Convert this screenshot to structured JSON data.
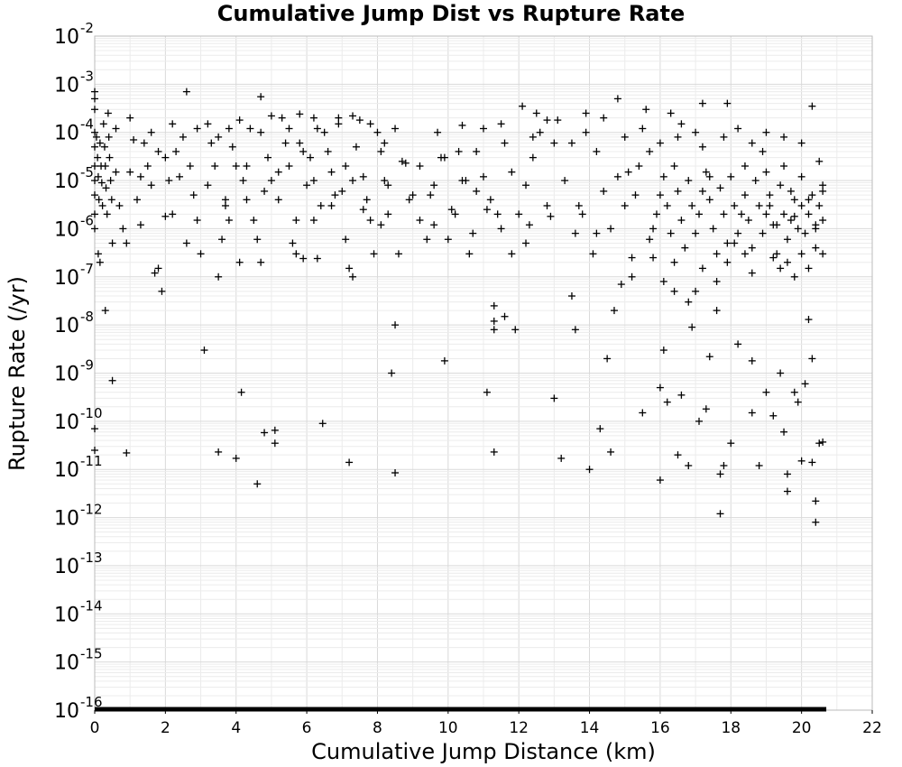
{
  "chart_data": {
    "type": "scatter",
    "title": "Cumulative Jump Dist vs Rupture Rate",
    "xlabel": "Cumulative Jump Distance (km)",
    "ylabel": "Rupture Rate (/yr)",
    "xlim": [
      0,
      22
    ],
    "ylim": [
      1e-16,
      0.01
    ],
    "yscale": "log",
    "grid": true,
    "marker": "+",
    "marker_color": "#000000",
    "x_ticks": [
      "0",
      "2",
      "4",
      "6",
      "8",
      "10",
      "12",
      "14",
      "16",
      "18",
      "20",
      "22"
    ],
    "y_ticks": [
      {
        "base": "10",
        "exp": "-2"
      },
      {
        "base": "10",
        "exp": "-3"
      },
      {
        "base": "10",
        "exp": "-4"
      },
      {
        "base": "10",
        "exp": "-5"
      },
      {
        "base": "10",
        "exp": "-6"
      },
      {
        "base": "10",
        "exp": "-7"
      },
      {
        "base": "10",
        "exp": "-8"
      },
      {
        "base": "10",
        "exp": "-9"
      },
      {
        "base": "10",
        "exp": "-10"
      },
      {
        "base": "10",
        "exp": "-11"
      },
      {
        "base": "10",
        "exp": "-12"
      },
      {
        "base": "10",
        "exp": "-13"
      },
      {
        "base": "10",
        "exp": "-14"
      },
      {
        "base": "10",
        "exp": "-15"
      },
      {
        "base": "10",
        "exp": "-16"
      }
    ],
    "points": [
      [
        0.0,
        0.0007
      ],
      [
        0.0,
        0.0005
      ],
      [
        0.0,
        0.0003
      ],
      [
        0.0,
        0.0001
      ],
      [
        0.0,
        5e-05
      ],
      [
        0.0,
        2e-05
      ],
      [
        0.0,
        1e-05
      ],
      [
        0.0,
        5e-06
      ],
      [
        0.0,
        2e-06
      ],
      [
        0.0,
        1e-06
      ],
      [
        0.0,
        7e-11
      ],
      [
        0.0,
        2.5e-11
      ],
      [
        0.05,
        8e-05
      ],
      [
        0.08,
        3e-05
      ],
      [
        0.1,
        1.2e-05
      ],
      [
        0.12,
        4e-06
      ],
      [
        0.15,
        6e-05
      ],
      [
        0.18,
        2e-05
      ],
      [
        0.2,
        9e-06
      ],
      [
        0.22,
        3e-06
      ],
      [
        0.25,
        0.00015
      ],
      [
        0.28,
        5e-05
      ],
      [
        0.3,
        2e-05
      ],
      [
        0.32,
        7e-06
      ],
      [
        0.35,
        2e-06
      ],
      [
        0.38,
        0.00025
      ],
      [
        0.4,
        8e-05
      ],
      [
        0.42,
        3e-05
      ],
      [
        0.45,
        1e-05
      ],
      [
        0.48,
        4e-06
      ],
      [
        0.1,
        3e-07
      ],
      [
        0.15,
        2e-07
      ],
      [
        0.3,
        2e-08
      ],
      [
        0.5,
        7e-10
      ],
      [
        0.5,
        5e-07
      ],
      [
        0.6,
        1.5e-05
      ],
      [
        0.7,
        3e-06
      ],
      [
        0.8,
        1e-06
      ],
      [
        0.9,
        5e-07
      ],
      [
        0.9,
        2.2e-11
      ],
      [
        1.0,
        1.5e-05
      ],
      [
        1.1,
        7e-05
      ],
      [
        1.2,
        4e-06
      ],
      [
        1.3,
        1.2e-06
      ],
      [
        1.4,
        6e-05
      ],
      [
        1.5,
        2e-05
      ],
      [
        1.6,
        8e-06
      ],
      [
        1.7,
        1.2e-07
      ],
      [
        1.8,
        1.5e-07
      ],
      [
        1.9,
        5e-08
      ],
      [
        2.0,
        3e-05
      ],
      [
        2.1,
        1e-05
      ],
      [
        2.2,
        2e-06
      ],
      [
        2.3,
        4e-05
      ],
      [
        2.4,
        1.2e-05
      ],
      [
        2.6,
        0.0007
      ],
      [
        2.7,
        2e-05
      ],
      [
        2.8,
        5e-06
      ],
      [
        2.9,
        1.5e-06
      ],
      [
        3.0,
        3e-07
      ],
      [
        3.1,
        3e-09
      ],
      [
        3.2,
        8e-06
      ],
      [
        3.3,
        6e-05
      ],
      [
        3.4,
        2e-05
      ],
      [
        3.5,
        1e-07
      ],
      [
        3.5,
        2.3e-11
      ],
      [
        3.6,
        6e-07
      ],
      [
        3.7,
        3e-06
      ],
      [
        3.8,
        0.00012
      ],
      [
        3.9,
        5e-05
      ],
      [
        4.0,
        2e-05
      ],
      [
        4.0,
        1.7e-11
      ],
      [
        4.1,
        2e-07
      ],
      [
        4.15,
        4e-10
      ],
      [
        4.2,
        1e-05
      ],
      [
        4.3,
        4e-06
      ],
      [
        4.4,
        0.00012
      ],
      [
        4.5,
        1.5e-06
      ],
      [
        4.6,
        5e-12
      ],
      [
        4.7,
        2e-07
      ],
      [
        4.7,
        0.00055
      ],
      [
        4.8,
        5.8e-11
      ],
      [
        4.9,
        3e-05
      ],
      [
        5.0,
        1e-05
      ],
      [
        5.1,
        3.5e-11
      ],
      [
        5.1,
        6.5e-11
      ],
      [
        5.2,
        4e-06
      ],
      [
        5.3,
        0.0002
      ],
      [
        5.4,
        6e-05
      ],
      [
        5.5,
        2e-05
      ],
      [
        5.6,
        5e-07
      ],
      [
        5.7,
        1.5e-06
      ],
      [
        5.8,
        0.00024
      ],
      [
        5.9,
        2.4e-07
      ],
      [
        6.0,
        8e-06
      ],
      [
        6.1,
        3e-05
      ],
      [
        6.2,
        1e-05
      ],
      [
        6.3,
        2.4e-07
      ],
      [
        6.4,
        3e-06
      ],
      [
        6.45,
        9e-11
      ],
      [
        6.5,
        0.0001
      ],
      [
        6.6,
        4e-05
      ],
      [
        6.7,
        1.5e-05
      ],
      [
        6.8,
        5e-06
      ],
      [
        6.9,
        0.0002
      ],
      [
        7.0,
        6e-06
      ],
      [
        7.1,
        2e-05
      ],
      [
        7.2,
        1.5e-07
      ],
      [
        7.2,
        1.4e-11
      ],
      [
        7.3,
        1e-07
      ],
      [
        7.4,
        5e-05
      ],
      [
        7.5,
        0.00018
      ],
      [
        7.6,
        1.2e-05
      ],
      [
        7.7,
        4e-06
      ],
      [
        7.8,
        1.5e-06
      ],
      [
        7.9,
        3e-07
      ],
      [
        8.0,
        0.0001
      ],
      [
        8.1,
        4e-05
      ],
      [
        8.2,
        1e-05
      ],
      [
        8.3,
        2e-06
      ],
      [
        8.4,
        1e-09
      ],
      [
        8.5,
        8.5e-12
      ],
      [
        8.5,
        1e-08
      ],
      [
        8.6,
        3e-07
      ],
      [
        8.8,
        2.3e-05
      ],
      [
        9.0,
        5e-06
      ],
      [
        9.2,
        1.5e-06
      ],
      [
        9.4,
        6e-07
      ],
      [
        9.6,
        8e-06
      ],
      [
        9.8,
        3e-05
      ],
      [
        9.9,
        1.8e-09
      ],
      [
        10.0,
        6e-07
      ],
      [
        10.2,
        2e-06
      ],
      [
        10.4,
        1e-05
      ],
      [
        10.6,
        3e-07
      ],
      [
        10.8,
        4e-05
      ],
      [
        11.0,
        1.2e-05
      ],
      [
        11.1,
        4e-10
      ],
      [
        11.2,
        4e-06
      ],
      [
        11.3,
        2.5e-08
      ],
      [
        11.3,
        1.2e-08
      ],
      [
        11.3,
        8e-09
      ],
      [
        11.3,
        2.3e-11
      ],
      [
        11.5,
        1e-06
      ],
      [
        11.6,
        1.5e-08
      ],
      [
        11.8,
        3e-07
      ],
      [
        11.9,
        8e-09
      ],
      [
        12.0,
        2e-06
      ],
      [
        12.2,
        8e-06
      ],
      [
        12.4,
        3e-05
      ],
      [
        12.6,
        0.0001
      ],
      [
        12.8,
        3e-06
      ],
      [
        13.0,
        3e-10
      ],
      [
        13.2,
        1.7e-11
      ],
      [
        13.3,
        1e-05
      ],
      [
        13.5,
        4e-08
      ],
      [
        13.6,
        8e-09
      ],
      [
        13.7,
        3e-06
      ],
      [
        13.9,
        0.00025
      ],
      [
        14.0,
        1e-11
      ],
      [
        14.2,
        8e-07
      ],
      [
        14.3,
        7e-11
      ],
      [
        14.5,
        2e-09
      ],
      [
        14.6,
        2.3e-11
      ],
      [
        14.7,
        2e-08
      ],
      [
        14.8,
        0.0005
      ],
      [
        14.9,
        7e-08
      ],
      [
        15.0,
        3e-06
      ],
      [
        15.2,
        1e-07
      ],
      [
        15.4,
        2e-05
      ],
      [
        15.5,
        1.5e-10
      ],
      [
        15.6,
        0.0003
      ],
      [
        15.8,
        1e-06
      ],
      [
        16.0,
        6e-12
      ],
      [
        16.0,
        5e-10
      ],
      [
        16.1,
        3e-09
      ],
      [
        16.2,
        2.5e-10
      ],
      [
        16.4,
        5e-08
      ],
      [
        16.5,
        2e-11
      ],
      [
        16.6,
        3.5e-10
      ],
      [
        16.8,
        1.2e-11
      ],
      [
        16.9,
        9e-09
      ],
      [
        17.0,
        5e-08
      ],
      [
        17.1,
        1e-10
      ],
      [
        17.2,
        0.0004
      ],
      [
        17.3,
        1.8e-10
      ],
      [
        17.4,
        2.2e-09
      ],
      [
        17.6,
        2e-08
      ],
      [
        17.7,
        1.2e-12
      ],
      [
        17.7,
        8e-12
      ],
      [
        17.8,
        1.2e-11
      ],
      [
        17.9,
        0.0004
      ],
      [
        18.0,
        3.5e-11
      ],
      [
        18.2,
        4e-09
      ],
      [
        18.4,
        2e-05
      ],
      [
        18.6,
        1.5e-10
      ],
      [
        18.6,
        1.8e-09
      ],
      [
        18.8,
        1.2e-11
      ],
      [
        19.0,
        4e-10
      ],
      [
        19.2,
        1.3e-10
      ],
      [
        19.4,
        1e-09
      ],
      [
        19.5,
        6e-11
      ],
      [
        19.6,
        3.5e-12
      ],
      [
        19.6,
        8e-12
      ],
      [
        19.8,
        4e-10
      ],
      [
        19.9,
        2.5e-10
      ],
      [
        20.0,
        1.5e-11
      ],
      [
        20.1,
        6e-10
      ],
      [
        20.2,
        1.3e-08
      ],
      [
        20.3,
        2e-09
      ],
      [
        20.3,
        1.4e-11
      ],
      [
        20.4,
        2.2e-12
      ],
      [
        20.4,
        8e-13
      ],
      [
        20.5,
        3.5e-11
      ],
      [
        20.6,
        3.7e-11
      ],
      [
        20.6,
        3e-07
      ],
      [
        15.9,
        2e-06
      ],
      [
        16.0,
        5e-06
      ],
      [
        16.1,
        1.2e-05
      ],
      [
        16.2,
        3e-06
      ],
      [
        16.3,
        8e-07
      ],
      [
        16.4,
        2e-05
      ],
      [
        16.5,
        6e-06
      ],
      [
        16.6,
        1.5e-06
      ],
      [
        16.7,
        4e-07
      ],
      [
        16.8,
        1e-05
      ],
      [
        16.9,
        3e-06
      ],
      [
        17.0,
        8e-07
      ],
      [
        17.1,
        2e-06
      ],
      [
        17.2,
        6e-06
      ],
      [
        17.3,
        1.5e-05
      ],
      [
        17.4,
        4e-06
      ],
      [
        17.5,
        1e-06
      ],
      [
        17.6,
        3e-07
      ],
      [
        17.7,
        7e-06
      ],
      [
        17.8,
        2e-06
      ],
      [
        17.9,
        5e-07
      ],
      [
        18.0,
        1.2e-05
      ],
      [
        18.1,
        3e-06
      ],
      [
        18.2,
        8e-07
      ],
      [
        18.3,
        2e-06
      ],
      [
        18.4,
        5e-06
      ],
      [
        18.5,
        1.5e-06
      ],
      [
        18.6,
        4e-07
      ],
      [
        18.7,
        1e-05
      ],
      [
        18.8,
        3e-06
      ],
      [
        18.9,
        8e-07
      ],
      [
        19.0,
        2e-06
      ],
      [
        19.1,
        5e-06
      ],
      [
        19.2,
        1.2e-06
      ],
      [
        19.3,
        3e-07
      ],
      [
        19.4,
        8e-06
      ],
      [
        19.5,
        2e-06
      ],
      [
        19.6,
        6e-07
      ],
      [
        19.7,
        1.5e-06
      ],
      [
        19.8,
        4e-06
      ],
      [
        19.9,
        1e-06
      ],
      [
        20.0,
        3e-06
      ],
      [
        20.1,
        8e-07
      ],
      [
        20.2,
        2e-06
      ],
      [
        20.3,
        5e-06
      ],
      [
        20.4,
        1.2e-06
      ],
      [
        20.5,
        3e-06
      ],
      [
        20.6,
        8e-06
      ],
      [
        20.6,
        1.5e-06
      ],
      [
        18.9,
        4e-05
      ],
      [
        19.0,
        1.5e-05
      ],
      [
        19.1,
        3e-06
      ],
      [
        19.3,
        1.2e-06
      ],
      [
        19.5,
        2e-05
      ],
      [
        19.7,
        6e-06
      ],
      [
        19.8,
        1.8e-06
      ],
      [
        20.0,
        1.2e-05
      ],
      [
        20.2,
        4e-06
      ],
      [
        20.4,
        1e-06
      ],
      [
        20.5,
        2.5e-05
      ],
      [
        20.6,
        6e-06
      ],
      [
        5.5,
        0.00012
      ],
      [
        6.2,
        0.0002
      ],
      [
        7.8,
        0.00015
      ],
      [
        8.2,
        6e-05
      ],
      [
        9.2,
        2e-05
      ],
      [
        10.3,
        4e-05
      ],
      [
        10.8,
        6e-06
      ],
      [
        11.8,
        1.5e-05
      ],
      [
        12.1,
        0.00035
      ],
      [
        12.8,
        0.00018
      ],
      [
        13.5,
        6e-05
      ],
      [
        14.2,
        4e-05
      ],
      [
        14.8,
        1.2e-05
      ],
      [
        15.3,
        5e-06
      ],
      [
        16.5,
        8e-05
      ],
      [
        17.4,
        1.2e-05
      ],
      [
        12.5,
        0.00025
      ],
      [
        13.1,
        0.00018
      ],
      [
        11.5,
        0.00015
      ],
      [
        9.5,
        5e-06
      ],
      [
        9.9,
        3e-05
      ],
      [
        10.5,
        1e-05
      ],
      [
        11.1,
        2.5e-06
      ],
      [
        12.3,
        1.2e-06
      ],
      [
        13.8,
        2e-06
      ],
      [
        14.4,
        6e-06
      ],
      [
        15.1,
        1.5e-05
      ],
      [
        15.7,
        4e-05
      ],
      [
        16.3,
        0.00025
      ],
      [
        17.0,
        0.0001
      ],
      [
        1.3,
        1.2e-05
      ],
      [
        1.8,
        4e-05
      ],
      [
        2.5,
        8e-05
      ],
      [
        3.2,
        0.00015
      ],
      [
        3.7,
        4e-06
      ],
      [
        4.3,
        2e-05
      ],
      [
        4.8,
        6e-06
      ],
      [
        5.2,
        1.5e-05
      ],
      [
        5.9,
        4e-05
      ],
      [
        6.3,
        0.00012
      ],
      [
        6.7,
        3e-06
      ],
      [
        7.3,
        1e-05
      ],
      [
        7.6,
        2.5e-06
      ],
      [
        8.3,
        8e-06
      ],
      [
        8.7,
        2.5e-05
      ],
      [
        2.0,
        1.8e-06
      ],
      [
        2.6,
        5e-07
      ],
      [
        3.8,
        1.5e-06
      ],
      [
        4.6,
        6e-07
      ],
      [
        5.7,
        3e-07
      ],
      [
        6.2,
        1.5e-06
      ],
      [
        7.1,
        6e-07
      ],
      [
        8.1,
        1.2e-06
      ],
      [
        8.9,
        4e-06
      ],
      [
        9.6,
        1.2e-06
      ],
      [
        10.1,
        2.5e-06
      ],
      [
        10.7,
        8e-07
      ],
      [
        11.4,
        2e-06
      ],
      [
        12.2,
        5e-07
      ],
      [
        12.9,
        1.8e-06
      ],
      [
        13.6,
        8e-07
      ],
      [
        14.1,
        3e-07
      ],
      [
        14.6,
        1e-06
      ],
      [
        15.2,
        2.5e-07
      ],
      [
        15.7,
        6e-07
      ],
      [
        0.6,
        0.00012
      ],
      [
        1.0,
        0.0002
      ],
      [
        1.6,
        0.0001
      ],
      [
        2.2,
        0.00015
      ],
      [
        2.9,
        0.00012
      ],
      [
        3.5,
        8e-05
      ],
      [
        4.1,
        0.00018
      ],
      [
        4.7,
        0.0001
      ],
      [
        5.0,
        0.00022
      ],
      [
        5.8,
        6e-05
      ],
      [
        6.9,
        0.00015
      ],
      [
        7.3,
        0.00022
      ],
      [
        8.5,
        0.00012
      ],
      [
        9.7,
        0.0001
      ],
      [
        10.4,
        0.00014
      ],
      [
        11.0,
        0.00012
      ],
      [
        11.6,
        6e-05
      ],
      [
        12.4,
        8e-05
      ],
      [
        13.0,
        6e-05
      ],
      [
        13.9,
        0.0001
      ],
      [
        14.4,
        0.0002
      ],
      [
        15.0,
        8e-05
      ],
      [
        15.5,
        0.00012
      ],
      [
        16.0,
        6e-05
      ],
      [
        16.6,
        0.00015
      ],
      [
        17.2,
        5e-05
      ],
      [
        17.8,
        8e-05
      ],
      [
        18.2,
        0.00012
      ],
      [
        18.6,
        6e-05
      ],
      [
        19.0,
        0.0001
      ],
      [
        19.5,
        8e-05
      ],
      [
        20.0,
        6e-05
      ],
      [
        20.3,
        0.00035
      ],
      [
        19.2,
        2.5e-07
      ],
      [
        19.4,
        1.5e-07
      ],
      [
        19.6,
        2e-07
      ],
      [
        19.8,
        1e-07
      ],
      [
        20.0,
        3e-07
      ],
      [
        20.2,
        1.5e-07
      ],
      [
        20.4,
        4e-07
      ],
      [
        18.6,
        1.2e-07
      ],
      [
        18.4,
        3e-07
      ],
      [
        18.1,
        5e-07
      ],
      [
        17.9,
        2e-07
      ],
      [
        17.6,
        8e-08
      ],
      [
        17.2,
        1.5e-07
      ],
      [
        16.8,
        3e-08
      ],
      [
        16.4,
        2e-07
      ],
      [
        16.1,
        8e-08
      ],
      [
        15.8,
        2.5e-07
      ]
    ],
    "bottom_line": {
      "x_range": [
        0,
        20.7
      ],
      "y": 1e-16
    }
  }
}
